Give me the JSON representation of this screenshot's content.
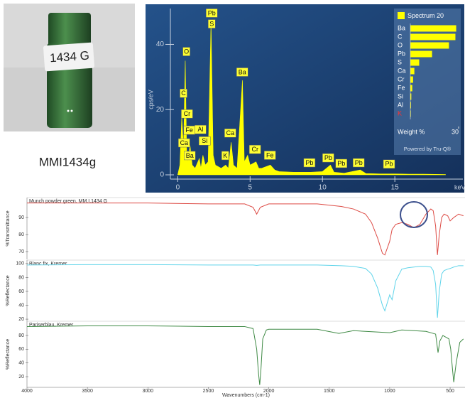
{
  "photo": {
    "label": "1434 G",
    "caption": "MMI1434g"
  },
  "chart_data": [
    {
      "type": "area",
      "x_label": "keV",
      "y_label": "cps/eV",
      "color": "#ffff00",
      "x": [
        0,
        0.15,
        0.28,
        0.4,
        0.52,
        0.62,
        0.7,
        0.85,
        1.0,
        1.2,
        1.49,
        1.6,
        1.74,
        1.9,
        2.1,
        2.3,
        2.45,
        2.6,
        3.0,
        3.31,
        3.5,
        3.69,
        3.85,
        4.1,
        4.47,
        4.6,
        4.83,
        5.0,
        5.41,
        5.6,
        5.8,
        6.4,
        6.7,
        7.0,
        8.0,
        9.2,
        10.0,
        10.55,
        10.8,
        11.5,
        12.61,
        13.0,
        14.0,
        15.0,
        16.0,
        17.0,
        18.5
      ],
      "values": [
        0,
        3,
        18,
        8,
        35,
        6,
        4,
        9,
        3,
        2,
        5,
        2,
        6,
        3,
        4,
        47,
        6,
        3,
        2,
        3,
        2,
        10,
        3,
        2,
        29,
        4,
        6,
        3,
        4,
        2,
        2,
        3,
        1.5,
        1,
        0.8,
        0.8,
        1,
        3,
        0.8,
        0.5,
        1.5,
        0.4,
        0.3,
        0.3,
        0.2,
        0.2,
        0.1
      ],
      "xlim": [
        -0.9,
        19.7
      ],
      "ylim": [
        0,
        51
      ],
      "xticks": [
        0,
        5,
        10,
        15
      ],
      "yticks": [
        0,
        20,
        40
      ],
      "annotations": [
        {
          "text": "Pb",
          "x": 2.35,
          "y": 49.6
        },
        {
          "text": "S",
          "x": 2.35,
          "y": 46.3
        },
        {
          "text": "O",
          "x": 0.6,
          "y": 37.8
        },
        {
          "text": "C",
          "x": 0.4,
          "y": 25
        },
        {
          "text": "Cr",
          "x": 0.64,
          "y": 18.7
        },
        {
          "text": "Fe",
          "x": 0.8,
          "y": 13.7
        },
        {
          "text": "Al",
          "x": 1.57,
          "y": 13.9
        },
        {
          "text": "Si",
          "x": 1.86,
          "y": 10.4
        },
        {
          "text": "Ca",
          "x": 0.44,
          "y": 9.8
        },
        {
          "text": "Ba",
          "x": 0.83,
          "y": 5.9
        },
        {
          "text": "K",
          "x": 3.28,
          "y": 5.9
        },
        {
          "text": "Ca",
          "x": 3.63,
          "y": 12.8
        },
        {
          "text": "Ba",
          "x": 4.46,
          "y": 31.5
        },
        {
          "text": "Cr",
          "x": 5.34,
          "y": 7.8
        },
        {
          "text": "Fe",
          "x": 6.37,
          "y": 6
        },
        {
          "text": "Pb",
          "x": 9.1,
          "y": 3.7
        },
        {
          "text": "Pb",
          "x": 10.4,
          "y": 5.2
        },
        {
          "text": "Pb",
          "x": 11.3,
          "y": 3.5
        },
        {
          "text": "Pb",
          "x": 12.5,
          "y": 3.7
        },
        {
          "text": "Pb",
          "x": 14.6,
          "y": 3.3
        }
      ]
    },
    {
      "type": "hbar",
      "x_label": "Weight %",
      "footer": "Powered by Tru-Q®",
      "categories": [
        "Ba",
        "C",
        "O",
        "Pb",
        "S",
        "Ca",
        "Cr",
        "Fe",
        "Si",
        "Al",
        "K"
      ],
      "label_colors": [
        "#ffffff",
        "#ffffff",
        "#ffffff",
        "#ffffff",
        "#ffffff",
        "#ffffff",
        "#ffffff",
        "#ffffff",
        "#ffffff",
        "#ffffff",
        "#ff3030"
      ],
      "series": [
        {
          "name": "Spectrum 20",
          "color": "#ffff00",
          "values": [
            28.5,
            28,
            24,
            13.5,
            5.5,
            2.5,
            1.7,
            1.2,
            0.6,
            0.4,
            0.3
          ]
        }
      ],
      "xlim": [
        0,
        30
      ],
      "xticks": [
        30
      ]
    },
    {
      "type": "line",
      "title": "Munch powder green, MM.I.1434 G",
      "y_label": "%Transmittance",
      "color": "#dd4a44",
      "x": [
        4000,
        3500,
        3000,
        2500,
        2200,
        2130,
        2100,
        2070,
        2000,
        1600,
        1400,
        1300,
        1200,
        1150,
        1100,
        1060,
        1040,
        1000,
        980,
        950,
        900,
        850,
        800,
        750,
        700,
        660,
        640,
        620,
        605,
        590,
        570,
        550,
        520,
        500,
        470,
        430,
        390
      ],
      "values": [
        98.5,
        98.5,
        98.5,
        98,
        98,
        96,
        92,
        96,
        98,
        98,
        96.5,
        95,
        92,
        87,
        78,
        69,
        68,
        76,
        83,
        86,
        87,
        86,
        84,
        86,
        92,
        95,
        94,
        85,
        68,
        80,
        90,
        92,
        91,
        88,
        90,
        92,
        91
      ],
      "xlim": [
        4000,
        377
      ],
      "ylim": [
        65.4,
        101.7
      ],
      "yticks": [
        70,
        80,
        90
      ]
    },
    {
      "type": "line",
      "title": "Blanc fix, Kremer",
      "y_label": "%Reflectance",
      "color": "#5fd4ea",
      "x": [
        4000,
        3500,
        3000,
        2500,
        2200,
        2130,
        2100,
        2070,
        2000,
        1600,
        1400,
        1300,
        1200,
        1150,
        1100,
        1060,
        1040,
        1000,
        980,
        950,
        900,
        850,
        800,
        750,
        700,
        660,
        640,
        620,
        605,
        590,
        570,
        550,
        520,
        500,
        470,
        430,
        390
      ],
      "values": [
        98,
        98.5,
        98.5,
        98,
        98,
        98,
        97.5,
        98,
        98,
        98,
        97,
        96,
        93,
        85,
        65,
        40,
        32,
        55,
        48,
        75,
        92,
        94,
        95,
        96,
        96,
        95,
        90,
        70,
        22,
        60,
        85,
        90,
        92,
        93,
        95,
        97,
        97
      ],
      "xlim": [
        4000,
        377
      ],
      "ylim": [
        17,
        105
      ],
      "yticks": [
        20,
        40,
        60,
        80,
        100
      ]
    },
    {
      "type": "line",
      "title": "Pariserblau, Kremer",
      "y_label": "%Reflectance",
      "x_label": "Wavenumbers (cm-1)",
      "color": "#3f8a45",
      "x": [
        4000,
        3500,
        3000,
        2500,
        2200,
        2130,
        2100,
        2085,
        2075,
        2065,
        2050,
        2020,
        2000,
        1600,
        1420,
        1300,
        1000,
        900,
        700,
        620,
        600,
        585,
        560,
        510,
        495,
        480,
        470,
        450,
        420,
        390
      ],
      "values": [
        93,
        94,
        94,
        93,
        93,
        90,
        60,
        25,
        8,
        30,
        75,
        88,
        89,
        89,
        83,
        87,
        84,
        88,
        86,
        82,
        55,
        72,
        80,
        75,
        60,
        30,
        12,
        40,
        70,
        75
      ],
      "xlim": [
        4000,
        377
      ],
      "ylim": [
        4.5,
        100.7
      ],
      "yticks": [
        20,
        40,
        60,
        80
      ],
      "xticks": [
        4000,
        3500,
        3000,
        2500,
        2000,
        1500,
        1000,
        500
      ]
    }
  ]
}
